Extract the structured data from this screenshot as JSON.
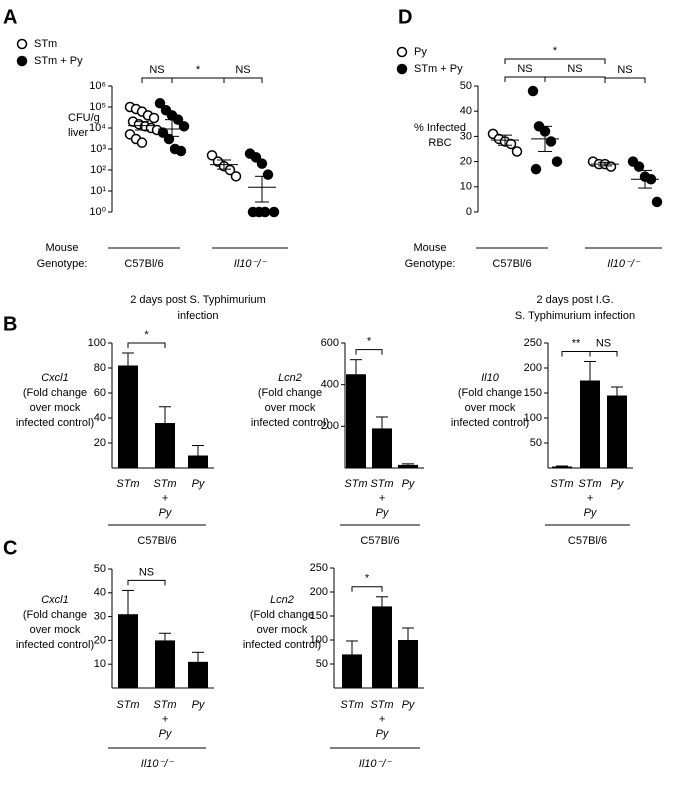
{
  "chart_data": [
    {
      "type": "scatter",
      "panel": "A",
      "log_y": true,
      "ylabel": [
        "CFU/g",
        "liver"
      ],
      "ylim": [
        1,
        1000000
      ],
      "yticks": [
        {
          "value": 1,
          "label": "10⁰"
        },
        {
          "value": 10,
          "label": "10¹"
        },
        {
          "value": 100,
          "label": "10²"
        },
        {
          "value": 1000,
          "label": "10³"
        },
        {
          "value": 10000,
          "label": "10⁴"
        },
        {
          "value": 100000,
          "label": "10⁵"
        },
        {
          "value": 1000000,
          "label": "10⁶"
        }
      ],
      "series": [
        {
          "name": "STm",
          "marker": "open",
          "color": "#000000"
        },
        {
          "name": "STm + Py",
          "marker": "filled",
          "color": "#000000"
        }
      ],
      "genotype_title": [
        "Mouse",
        "Genotype:"
      ],
      "genotypes": [
        {
          "name": "C57Bl/6",
          "groups": [
            {
              "values": [
                100000,
                80000,
                60000,
                40000,
                30000,
                20000,
                15000,
                12000,
                10000,
                8000,
                5000,
                3000,
                2000
              ],
              "mean": 13000,
              "lower": 8000,
              "upper": 20000
            },
            {
              "values": [
                150000,
                70000,
                40000,
                25000,
                12000,
                6000,
                3000,
                1000,
                800
              ],
              "mean": 9000,
              "lower": 4000,
              "upper": 25000
            }
          ]
        },
        {
          "name": "Il10⁻/⁻",
          "groups": [
            {
              "values": [
                500,
                250,
                150,
                100,
                50
              ],
              "mean": 180,
              "lower": 110,
              "upper": 300
            },
            {
              "values": [
                600,
                400,
                200,
                60,
                1,
                1,
                1,
                1
              ],
              "mean": 15,
              "lower": 3,
              "upper": 50
            }
          ]
        }
      ],
      "comparisons": [
        {
          "label": "NS",
          "between": [
            0,
            1
          ]
        },
        {
          "label": "*",
          "between": [
            1,
            2
          ]
        },
        {
          "label": "NS",
          "between": [
            2,
            3
          ]
        }
      ],
      "footer": [
        "2 days post S. Typhimurium",
        "infection"
      ]
    },
    {
      "type": "scatter",
      "panel": "D",
      "log_y": false,
      "ylabel": [
        "% Infected",
        "RBC"
      ],
      "ylim": [
        0,
        50
      ],
      "yticks": [
        0,
        10,
        20,
        30,
        40,
        50
      ],
      "series": [
        {
          "name": "Py",
          "marker": "open",
          "color": "#000000"
        },
        {
          "name": "STm + Py",
          "marker": "filled",
          "color": "#000000"
        }
      ],
      "genotype_title": [
        "Mouse",
        "Genotype:"
      ],
      "genotypes": [
        {
          "name": "C57Bl/6",
          "groups": [
            {
              "values": [
                31,
                29,
                28,
                27,
                24
              ],
              "mean": 28.5,
              "lower": 26.5,
              "upper": 30.5
            },
            {
              "values": [
                48,
                34,
                32,
                28,
                20,
                17
              ],
              "mean": 29,
              "lower": 24,
              "upper": 34
            }
          ]
        },
        {
          "name": "Il10⁻/⁻",
          "groups": [
            {
              "values": [
                20,
                19,
                19,
                18
              ],
              "mean": 19,
              "lower": 18.3,
              "upper": 19.7
            },
            {
              "values": [
                20,
                18,
                14,
                13,
                4
              ],
              "mean": 13,
              "lower": 9.5,
              "upper": 16.5
            }
          ]
        }
      ],
      "comparisons": [
        {
          "label": "NS",
          "between": [
            0,
            1
          ]
        },
        {
          "label": "NS",
          "between": [
            1,
            2
          ]
        },
        {
          "label": "NS",
          "between": [
            2,
            3
          ]
        },
        {
          "label": "*",
          "between": [
            0,
            2
          ]
        }
      ],
      "footer": [
        "2 days post I.G.",
        "S. Typhimurium infection"
      ]
    },
    {
      "type": "bar",
      "panel": "B",
      "ylabel": [
        "Cxcl1",
        "(Fold change",
        "over mock",
        "infected control)"
      ],
      "ylim": [
        0,
        100
      ],
      "yticks": [
        20,
        40,
        60,
        80,
        100
      ],
      "color": "#000000",
      "categories": [
        [
          "STm"
        ],
        [
          "STm",
          "+",
          "Py"
        ],
        [
          "Py"
        ]
      ],
      "values": [
        82,
        36,
        10
      ],
      "errors": [
        10,
        13,
        8
      ],
      "group": "C57Bl/6",
      "comparisons": [
        {
          "label": "*",
          "between": [
            0,
            1
          ]
        }
      ]
    },
    {
      "type": "bar",
      "ylabel": [
        "Lcn2",
        "(Fold change",
        "over mock",
        "infected control)"
      ],
      "ylim": [
        0,
        600
      ],
      "yticks": [
        200,
        400,
        600
      ],
      "color": "#000000",
      "categories": [
        [
          "STm"
        ],
        [
          "STm",
          "+",
          "Py"
        ],
        [
          "Py"
        ]
      ],
      "values": [
        450,
        190,
        15
      ],
      "errors": [
        70,
        55,
        5
      ],
      "group": "C57Bl/6",
      "comparisons": [
        {
          "label": "*",
          "between": [
            0,
            1
          ]
        }
      ]
    },
    {
      "type": "bar",
      "ylabel": [
        "Il10",
        "(Fold change",
        "over mock",
        "infected control)"
      ],
      "ylim": [
        0,
        250
      ],
      "yticks": [
        50,
        100,
        150,
        200,
        250
      ],
      "color": "#000000",
      "categories": [
        [
          "STm"
        ],
        [
          "STm",
          "+",
          "Py"
        ],
        [
          "Py"
        ]
      ],
      "values": [
        3,
        175,
        145
      ],
      "errors": [
        1,
        38,
        17
      ],
      "group": "C57Bl/6",
      "comparisons": [
        {
          "label": "**",
          "between": [
            0,
            1
          ]
        },
        {
          "label": "NS",
          "between": [
            1,
            2
          ]
        }
      ]
    },
    {
      "type": "bar",
      "panel": "C",
      "ylabel": [
        "Cxcl1",
        "(Fold change",
        "over mock",
        "infected control)"
      ],
      "ylim": [
        0,
        50
      ],
      "yticks": [
        10,
        20,
        30,
        40,
        50
      ],
      "color": "#000000",
      "categories": [
        [
          "STm"
        ],
        [
          "STm",
          "+",
          "Py"
        ],
        [
          "Py"
        ]
      ],
      "values": [
        31,
        20,
        11
      ],
      "errors": [
        10,
        3,
        4
      ],
      "group": "Il10⁻/⁻",
      "comparisons": [
        {
          "label": "NS",
          "between": [
            0,
            1
          ]
        }
      ]
    },
    {
      "type": "bar",
      "ylabel": [
        "Lcn2",
        "(Fold change",
        "over mock",
        "infected control)"
      ],
      "ylim": [
        0,
        250
      ],
      "yticks": [
        50,
        100,
        150,
        200,
        250
      ],
      "color": "#000000",
      "categories": [
        [
          "STm"
        ],
        [
          "STm",
          "+",
          "Py"
        ],
        [
          "Py"
        ]
      ],
      "values": [
        70,
        170,
        100
      ],
      "errors": [
        28,
        20,
        25
      ],
      "group": "Il10⁻/⁻",
      "comparisons": [
        {
          "label": "*",
          "between": [
            0,
            1
          ]
        }
      ]
    }
  ]
}
